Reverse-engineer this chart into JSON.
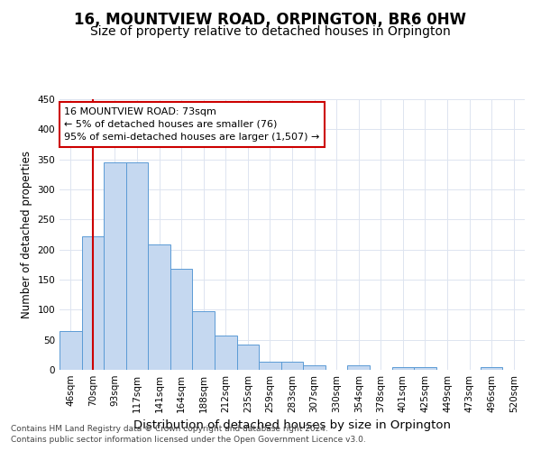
{
  "title": "16, MOUNTVIEW ROAD, ORPINGTON, BR6 0HW",
  "subtitle": "Size of property relative to detached houses in Orpington",
  "xlabel": "Distribution of detached houses by size in Orpington",
  "ylabel": "Number of detached properties",
  "categories": [
    "46sqm",
    "70sqm",
    "93sqm",
    "117sqm",
    "141sqm",
    "164sqm",
    "188sqm",
    "212sqm",
    "235sqm",
    "259sqm",
    "283sqm",
    "307sqm",
    "330sqm",
    "354sqm",
    "378sqm",
    "401sqm",
    "425sqm",
    "449sqm",
    "473sqm",
    "496sqm",
    "520sqm"
  ],
  "values": [
    65,
    222,
    345,
    345,
    208,
    168,
    97,
    57,
    42,
    13,
    13,
    8,
    0,
    7,
    0,
    5,
    5,
    0,
    0,
    5,
    0
  ],
  "bar_color": "#c5d8f0",
  "bar_edge_color": "#5b9bd5",
  "ylim": [
    0,
    450
  ],
  "yticks": [
    0,
    50,
    100,
    150,
    200,
    250,
    300,
    350,
    400,
    450
  ],
  "red_line_x": 1.0,
  "annotation_line1": "16 MOUNTVIEW ROAD: 73sqm",
  "annotation_line2": "← 5% of detached houses are smaller (76)",
  "annotation_line3": "95% of semi-detached houses are larger (1,507) →",
  "annotation_box_color": "#ffffff",
  "annotation_box_edge": "#cc0000",
  "footer_line1": "Contains HM Land Registry data © Crown copyright and database right 2024.",
  "footer_line2": "Contains public sector information licensed under the Open Government Licence v3.0.",
  "title_fontsize": 12,
  "subtitle_fontsize": 10,
  "xlabel_fontsize": 9.5,
  "ylabel_fontsize": 8.5,
  "tick_fontsize": 7.5,
  "annot_fontsize": 8,
  "footer_fontsize": 6.5,
  "background_color": "#ffffff",
  "grid_color": "#dde4f0"
}
